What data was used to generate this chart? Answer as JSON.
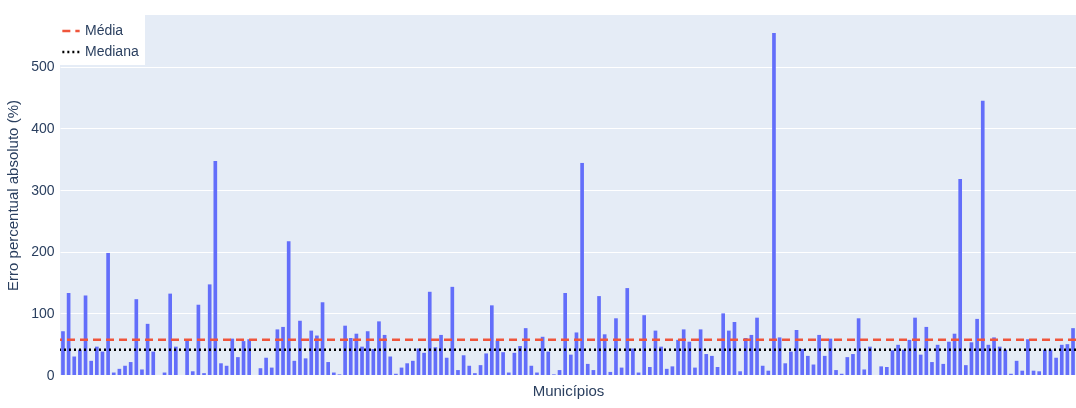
{
  "chart_data": {
    "type": "bar",
    "xlabel": "Municípios",
    "ylabel": "Erro percentual absoluto (%)",
    "categories": [
      null,
      null,
      null,
      null,
      null,
      null,
      null,
      null,
      null,
      null,
      null,
      null,
      null,
      null,
      null,
      null,
      null,
      null,
      null,
      null,
      null,
      null,
      null,
      null,
      null,
      null,
      null,
      null,
      null,
      null,
      null,
      null,
      null,
      null,
      null,
      null,
      null,
      null,
      null,
      null,
      null,
      null,
      null,
      null,
      null,
      null,
      null,
      null,
      null,
      null,
      null,
      null,
      null,
      null,
      null,
      null,
      null,
      null,
      null,
      null,
      null,
      null,
      null,
      null,
      null,
      null,
      null,
      null,
      null,
      null,
      null,
      null,
      null,
      null,
      null,
      null,
      null,
      null,
      null,
      null,
      null,
      null,
      null,
      null,
      null,
      null,
      null,
      null,
      null,
      null,
      null,
      null,
      null,
      null,
      null,
      null,
      null,
      null,
      null,
      null,
      null,
      null,
      null,
      null,
      null,
      null,
      null,
      null,
      null,
      null,
      null,
      null,
      null,
      null,
      null,
      null,
      null,
      null,
      null,
      null,
      null,
      null,
      null,
      null,
      null,
      null,
      null,
      null,
      null,
      null,
      null,
      null,
      null,
      null,
      null,
      null,
      null,
      null,
      null,
      null,
      null,
      null,
      null,
      null,
      null,
      null,
      null,
      null,
      null,
      null,
      null,
      null,
      null,
      null,
      null,
      null,
      null,
      null,
      null,
      null,
      null,
      null,
      null,
      null,
      null,
      null,
      null,
      null,
      null,
      null,
      null,
      null,
      null,
      null,
      null,
      null,
      null,
      null,
      null,
      null
    ],
    "values": [
      71,
      133,
      30,
      41,
      129,
      23,
      46,
      38,
      198,
      4,
      10,
      15,
      21,
      123,
      9,
      83,
      38,
      0,
      4,
      132,
      46,
      0,
      57,
      6,
      114,
      3,
      147,
      347,
      19,
      15,
      59,
      29,
      55,
      58,
      0,
      11,
      28,
      12,
      74,
      78,
      217,
      23,
      88,
      27,
      72,
      64,
      118,
      21,
      4,
      1,
      80,
      60,
      67,
      46,
      71,
      42,
      87,
      65,
      30,
      2,
      12,
      19,
      23,
      43,
      36,
      135,
      45,
      65,
      28,
      143,
      8,
      32,
      15,
      3,
      16,
      35,
      113,
      56,
      37,
      4,
      36,
      47,
      76,
      15,
      4,
      62,
      38,
      1,
      8,
      133,
      33,
      69,
      344,
      18,
      8,
      128,
      66,
      5,
      92,
      12,
      141,
      43,
      4,
      97,
      13,
      72,
      46,
      10,
      14,
      57,
      74,
      54,
      12,
      74,
      34,
      31,
      13,
      100,
      72,
      86,
      6,
      60,
      65,
      93,
      15,
      7,
      555,
      61,
      19,
      38,
      73,
      42,
      31,
      17,
      65,
      31,
      59,
      8,
      2,
      29,
      34,
      92,
      9,
      46,
      0,
      14,
      13,
      40,
      49,
      41,
      57,
      93,
      33,
      78,
      21,
      49,
      18,
      54,
      67,
      318,
      16,
      53,
      91,
      445,
      49,
      61,
      46,
      41,
      2,
      23,
      7,
      58,
      7,
      6,
      41,
      41,
      28,
      49,
      50,
      76
    ],
    "color": "#636efa",
    "ylim": [
      0,
      584
    ],
    "yticks": [
      0,
      100,
      200,
      300,
      400,
      500
    ],
    "grid": "y",
    "tick_labels": "y",
    "ref_lines": [
      {
        "axis": "y",
        "value": 57,
        "label": "Média",
        "color": "#ef553b",
        "line_style": "dashed"
      },
      {
        "axis": "y",
        "value": 41,
        "label": "Mediana",
        "color": "#000000",
        "line_style": "dotted"
      }
    ],
    "legend": "top left"
  }
}
